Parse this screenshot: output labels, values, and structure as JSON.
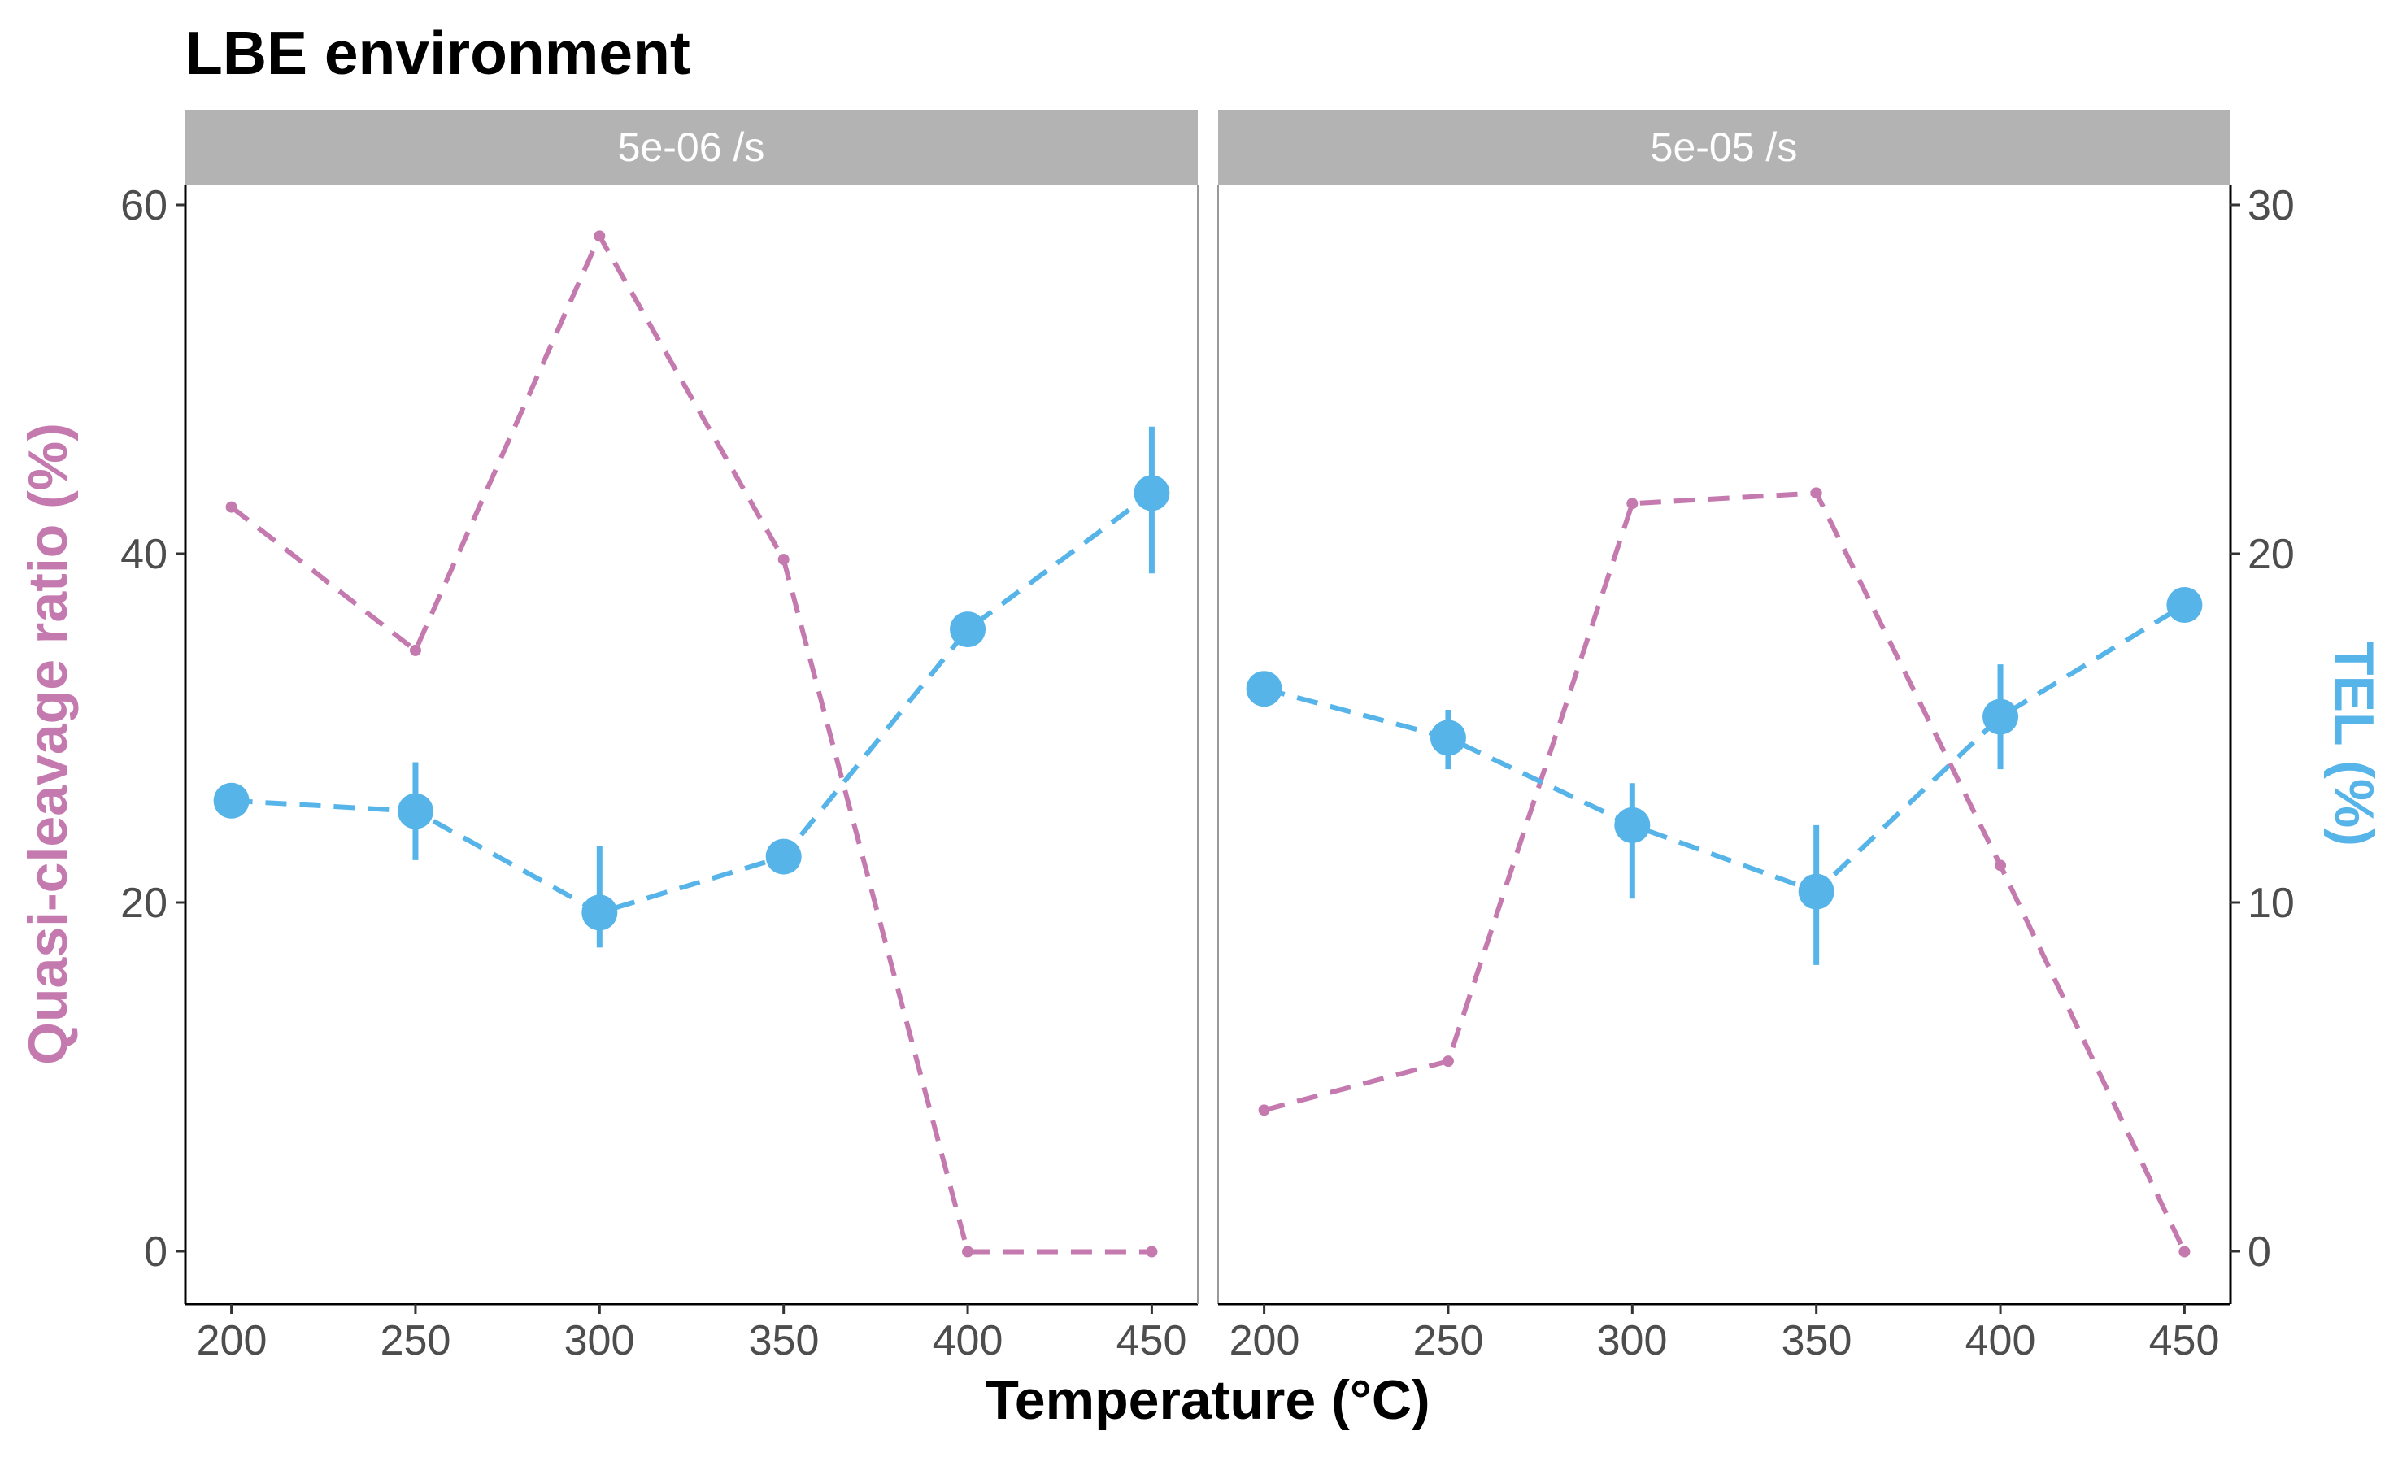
{
  "colors": {
    "qc": "#C47AAE",
    "tel": "#56B4E9",
    "strip": "#B3B3B3",
    "axis": "#000000",
    "tick": "#4D4D4D"
  },
  "chart_data": {
    "type": "line",
    "title": "LBE environment",
    "xlabel": "Temperature (°C)",
    "ylabel_left": "Quasi-cleavage ratio (%)",
    "ylabel_right": "TEL (%)",
    "x": [
      200,
      250,
      300,
      350,
      400,
      450
    ],
    "x_ticks": [
      "200",
      "250",
      "300",
      "350",
      "400",
      "450"
    ],
    "xlim": [
      187.5,
      462.5
    ],
    "ylim_left": [
      -3,
      61
    ],
    "ylim_right": [
      -1.5,
      30.5
    ],
    "y_ticks_left": [
      "0",
      "20",
      "40",
      "60"
    ],
    "y_ticks_right": [
      "0",
      "10",
      "20",
      "30"
    ],
    "panels": [
      {
        "strip_label": "5e-06 /s",
        "series": [
          {
            "name": "Quasi-cleavage ratio (%)",
            "axis": "left",
            "line": "dashed",
            "values": [
              42.6,
              34.4,
              58.1,
              39.6,
              0,
              0
            ]
          },
          {
            "name": "TEL (%)",
            "axis": "right",
            "line": "dashed",
            "values": [
              12.9,
              12.6,
              9.7,
              11.3,
              17.8,
              21.7
            ],
            "error_low": [
              12.9,
              11.2,
              8.7,
              11.0,
              17.8,
              19.4
            ],
            "error_high": [
              12.9,
              14.0,
              11.6,
              11.8,
              17.8,
              23.6
            ]
          }
        ]
      },
      {
        "strip_label": "5e-05 /s",
        "series": [
          {
            "name": "Quasi-cleavage ratio (%)",
            "axis": "left",
            "line": "dashed",
            "values": [
              8.1,
              10.9,
              42.8,
              43.4,
              22.1,
              0
            ]
          },
          {
            "name": "TEL (%)",
            "axis": "right",
            "line": "dashed",
            "values": [
              16.1,
              14.7,
              12.2,
              10.3,
              15.3,
              18.5
            ],
            "error_low": [
              16.1,
              13.8,
              10.1,
              8.2,
              13.8,
              18.5
            ],
            "error_high": [
              16.1,
              15.5,
              13.4,
              12.2,
              16.8,
              18.5
            ]
          }
        ]
      }
    ]
  }
}
